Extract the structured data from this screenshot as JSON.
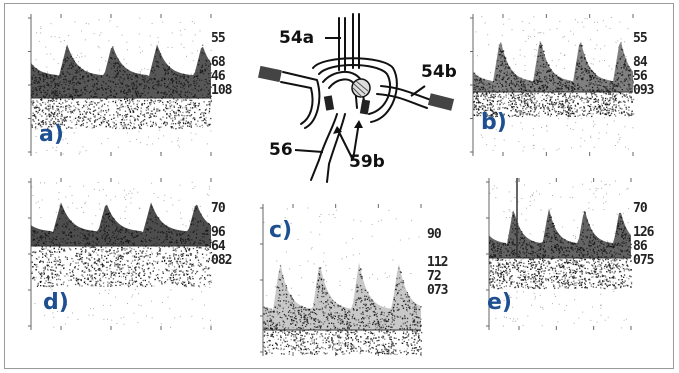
{
  "panels": [
    {
      "id": "a",
      "label": "a)",
      "readouts": [
        "55",
        "68",
        "46",
        "108"
      ]
    },
    {
      "id": "b",
      "label": "b)",
      "readouts": [
        "55",
        "84",
        "56",
        "093"
      ]
    },
    {
      "id": "c",
      "label": "c)",
      "readouts": [
        "90",
        "112",
        "72",
        "073"
      ]
    },
    {
      "id": "d",
      "label": "d)",
      "readouts": [
        "70",
        "96",
        "64",
        "082"
      ]
    },
    {
      "id": "e",
      "label": "e)",
      "readouts": [
        "70",
        "126",
        "86",
        "075"
      ]
    }
  ],
  "diagram": {
    "labels": {
      "top": "54a",
      "right": "54b",
      "left": "56",
      "bottom": "59b"
    }
  },
  "colors": {
    "label_blue": "#1d4f91",
    "frame": "#9a9a9a",
    "trace": "#222222"
  }
}
